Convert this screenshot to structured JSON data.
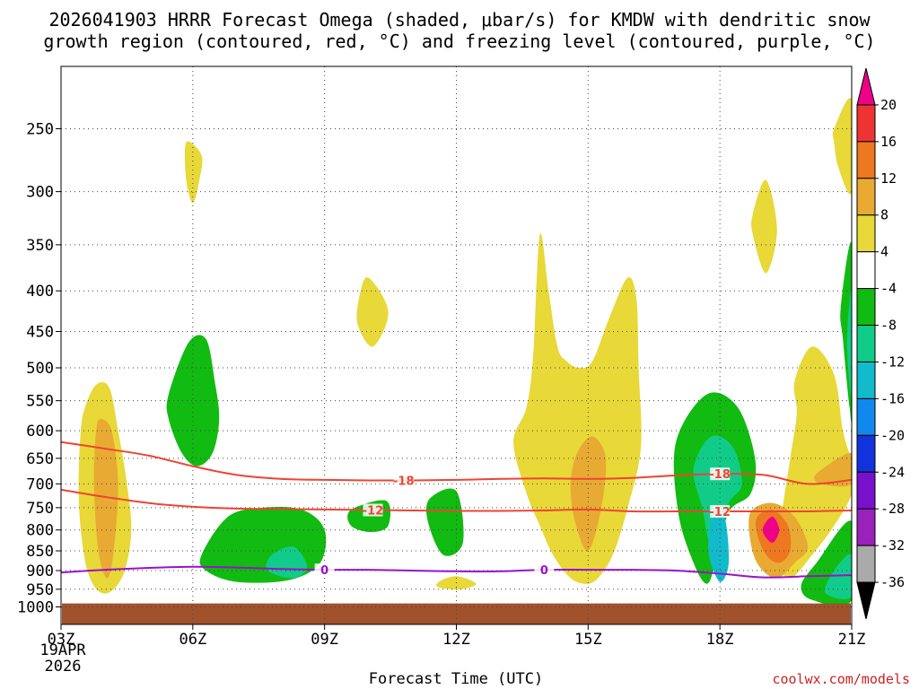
{
  "chart_data": {
    "type": "heatmap",
    "title_line1": "2026041903 HRRR Forecast Omega (shaded, μbar/s) for KMDW with dendritic snow",
    "title_line2": "growth region (contoured, red, °C) and freezing level (contoured, purple, °C)",
    "xlabel": "Forecast Time (UTC)",
    "x_ticks": [
      "03Z",
      "06Z",
      "09Z",
      "12Z",
      "15Z",
      "18Z",
      "21Z"
    ],
    "x_hours": [
      3,
      6,
      9,
      12,
      15,
      18,
      21
    ],
    "x_range": [
      3,
      21
    ],
    "date_line1": "19APR",
    "date_line2": "2026",
    "y_ticks": [
      250,
      300,
      350,
      400,
      450,
      500,
      550,
      600,
      650,
      700,
      750,
      800,
      850,
      900,
      950,
      1000
    ],
    "y_range": [
      1000,
      200
    ],
    "y_scale": "log-pressure",
    "ground_pressure": 990,
    "colorbar_labels": [
      "20",
      "16",
      "12",
      "8",
      "4",
      "-4",
      "-8",
      "-12",
      "-16",
      "-20",
      "-24",
      "-28",
      "-32",
      "-36"
    ],
    "colorbar_colors": [
      "#ee0088",
      "#ee3333",
      "#ee7722",
      "#e8aa33",
      "#e8d838",
      "#ffffff",
      "#11bb11",
      "#11cc88",
      "#11bbcc",
      "#1188ee",
      "#1133dd",
      "#7711cc",
      "#9922bb",
      "#aaaaaa",
      "#000000"
    ],
    "contours": [
      {
        "name": "-18",
        "color": "#ee4433",
        "label_hours": [
          10.8,
          18
        ],
        "hours": [
          3,
          4,
          5,
          6,
          7,
          8,
          9,
          10,
          11,
          12,
          13,
          14,
          15,
          16,
          17,
          18,
          19,
          20,
          21
        ],
        "pressures": [
          620,
          632,
          645,
          665,
          682,
          690,
          692,
          693,
          693,
          692,
          690,
          689,
          690,
          688,
          683,
          680,
          682,
          700,
          692
        ]
      },
      {
        "name": "-12",
        "color": "#ee4433",
        "label_hours": [
          10.1,
          18
        ],
        "hours": [
          3,
          4,
          5,
          6,
          7,
          8,
          9,
          10,
          11,
          12,
          13,
          14,
          15,
          16,
          17,
          18,
          19,
          20,
          21
        ],
        "pressures": [
          712,
          727,
          740,
          748,
          752,
          753,
          754,
          755,
          756,
          757,
          757,
          756,
          754,
          758,
          758,
          758,
          758,
          758,
          756
        ]
      },
      {
        "name": "0",
        "color": "#9911cc",
        "label_hours": [
          9,
          14
        ],
        "hours": [
          3,
          4,
          5,
          6,
          7,
          8,
          9,
          10,
          11,
          12,
          13,
          14,
          15,
          16,
          17,
          18,
          19,
          20,
          21
        ],
        "pressures": [
          905,
          898,
          893,
          890,
          892,
          896,
          898,
          898,
          900,
          902,
          902,
          898,
          898,
          898,
          900,
          908,
          918,
          915,
          912
        ]
      }
    ],
    "omega_regions": [
      {
        "value": 4,
        "hours": [
          3.55,
          3.8,
          4.1,
          4.3,
          4.5,
          4.6,
          4.45,
          4.15,
          3.85,
          3.6,
          3.45,
          3.4,
          3.45
        ],
        "pressures": [
          560,
          525,
          530,
          600,
          700,
          800,
          900,
          955,
          955,
          900,
          800,
          700,
          600
        ]
      },
      {
        "value": 8,
        "hours": [
          3.9,
          4.15,
          4.3,
          4.2,
          4.05,
          3.85,
          3.75,
          3.8
        ],
        "pressures": [
          580,
          600,
          700,
          850,
          920,
          850,
          700,
          600
        ]
      },
      {
        "value": 4,
        "hours": [
          5.85,
          6.2,
          6.15,
          6.0,
          5.85
        ],
        "pressures": [
          260,
          270,
          290,
          310,
          290
        ]
      },
      {
        "value": 4,
        "hours": [
          9.8,
          10.0,
          10.45,
          10.1,
          9.75
        ],
        "pressures": [
          405,
          385,
          425,
          470,
          440
        ]
      },
      {
        "value": 4,
        "hours": [
          11.6,
          12.0,
          12.45,
          12.1,
          11.6
        ],
        "pressures": [
          930,
          915,
          935,
          950,
          945
        ]
      },
      {
        "value": 4,
        "hours": [
          13.9,
          14.1,
          14.3,
          14.5,
          14.8,
          15.1,
          15.5,
          15.9,
          16.1,
          16.15,
          16.2,
          15.9,
          15.6,
          15.3,
          15.0,
          14.6,
          14.2,
          13.9,
          13.6,
          13.3,
          13.6,
          13.75
        ],
        "pressures": [
          340,
          400,
          470,
          490,
          500,
          490,
          430,
          385,
          410,
          500,
          630,
          750,
          850,
          910,
          935,
          920,
          860,
          790,
          720,
          620,
          560,
          480
        ]
      },
      {
        "value": 8,
        "hours": [
          14.75,
          15.1,
          15.4,
          15.3,
          15.0,
          14.7,
          14.6
        ],
        "pressures": [
          640,
          610,
          650,
          750,
          850,
          780,
          700
        ]
      },
      {
        "value": 4,
        "hours": [
          19.7,
          20.1,
          20.6,
          20.8,
          21.0,
          21.0,
          20.6,
          20.1,
          19.6,
          19.3,
          19.4,
          19.6,
          19.75
        ],
        "pressures": [
          520,
          470,
          510,
          600,
          660,
          720,
          790,
          860,
          920,
          870,
          770,
          650,
          570
        ]
      },
      {
        "value": 4,
        "hours": [
          18.75,
          19.05,
          19.3,
          19.05,
          18.75
        ],
        "pressures": [
          320,
          290,
          335,
          380,
          340
        ]
      },
      {
        "value": 4,
        "hours": [
          20.6,
          21.0,
          21.0,
          20.7,
          20.6
        ],
        "pressures": [
          250,
          230,
          300,
          280,
          260
        ]
      },
      {
        "value": -4,
        "hours": [
          5.45,
          5.9,
          6.3,
          6.5,
          6.6,
          6.45,
          6.1,
          5.75,
          5.45
        ],
        "pressures": [
          540,
          465,
          460,
          520,
          580,
          640,
          665,
          640,
          580
        ]
      },
      {
        "value": -4,
        "hours": [
          6.2,
          6.8,
          7.6,
          8.5,
          9.0,
          8.9,
          8.2,
          7.0,
          6.3
        ],
        "pressures": [
          860,
          770,
          750,
          755,
          800,
          880,
          925,
          930,
          900
        ]
      },
      {
        "value": -8,
        "hours": [
          7.8,
          8.3,
          8.6,
          8.3,
          7.7
        ],
        "pressures": [
          860,
          840,
          890,
          920,
          900
        ]
      },
      {
        "value": -4,
        "hours": [
          9.6,
          10.4,
          10.45,
          10.05,
          9.6
        ],
        "pressures": [
          755,
          735,
          790,
          805,
          790
        ]
      },
      {
        "value": -4,
        "hours": [
          11.4,
          12.0,
          12.15,
          11.7,
          11.35
        ],
        "pressures": [
          730,
          715,
          830,
          860,
          780
        ]
      },
      {
        "value": -4,
        "hours": [
          17.0,
          17.7,
          18.4,
          18.8,
          18.7,
          18.2,
          17.9,
          17.7,
          17.4,
          17.05
        ],
        "pressures": [
          620,
          540,
          560,
          650,
          720,
          760,
          880,
          935,
          880,
          760
        ]
      },
      {
        "value": -8,
        "hours": [
          17.4,
          17.8,
          18.3,
          18.5,
          18.2,
          17.8,
          17.6
        ],
        "pressures": [
          670,
          610,
          630,
          700,
          740,
          830,
          750
        ]
      },
      {
        "value": -12,
        "hours": [
          17.8,
          18.1,
          18.2,
          18.0,
          17.75
        ],
        "pressures": [
          780,
          770,
          880,
          930,
          860
        ]
      },
      {
        "value": -4,
        "hours": [
          20.2,
          21.0,
          21.0,
          20.1,
          19.85
        ],
        "pressures": [
          880,
          780,
          980,
          980,
          940
        ]
      },
      {
        "value": -8,
        "hours": [
          20.6,
          21.0,
          21.0,
          20.4
        ],
        "pressures": [
          900,
          860,
          970,
          960
        ]
      },
      {
        "value": -4,
        "hours": [
          20.75,
          21.0,
          21.0,
          20.95,
          20.8
        ],
        "pressures": [
          420,
          350,
          560,
          560,
          460
        ]
      },
      {
        "value": -8,
        "hours": [
          20.9,
          21.0,
          21.0,
          20.92
        ],
        "pressures": [
          450,
          400,
          540,
          500
        ]
      },
      {
        "value": 8,
        "hours": [
          18.7,
          19.2,
          19.7,
          20.0,
          19.7,
          19.3,
          18.9,
          18.7
        ],
        "pressures": [
          760,
          740,
          770,
          840,
          880,
          920,
          890,
          830
        ]
      },
      {
        "value": 12,
        "hours": [
          18.85,
          19.2,
          19.55,
          19.6,
          19.35,
          19.05,
          18.85
        ],
        "pressures": [
          770,
          755,
          790,
          850,
          880,
          860,
          810
        ]
      },
      {
        "value": 20,
        "hours": [
          19.0,
          19.2,
          19.35,
          19.2,
          19.0
        ],
        "pressures": [
          790,
          770,
          800,
          830,
          810
        ]
      },
      {
        "value": 8,
        "hours": [
          20.2,
          21.0,
          21.0,
          20.3
        ],
        "pressures": [
          680,
          640,
          700,
          700
        ]
      }
    ]
  },
  "credit": "coolwx.com/models"
}
